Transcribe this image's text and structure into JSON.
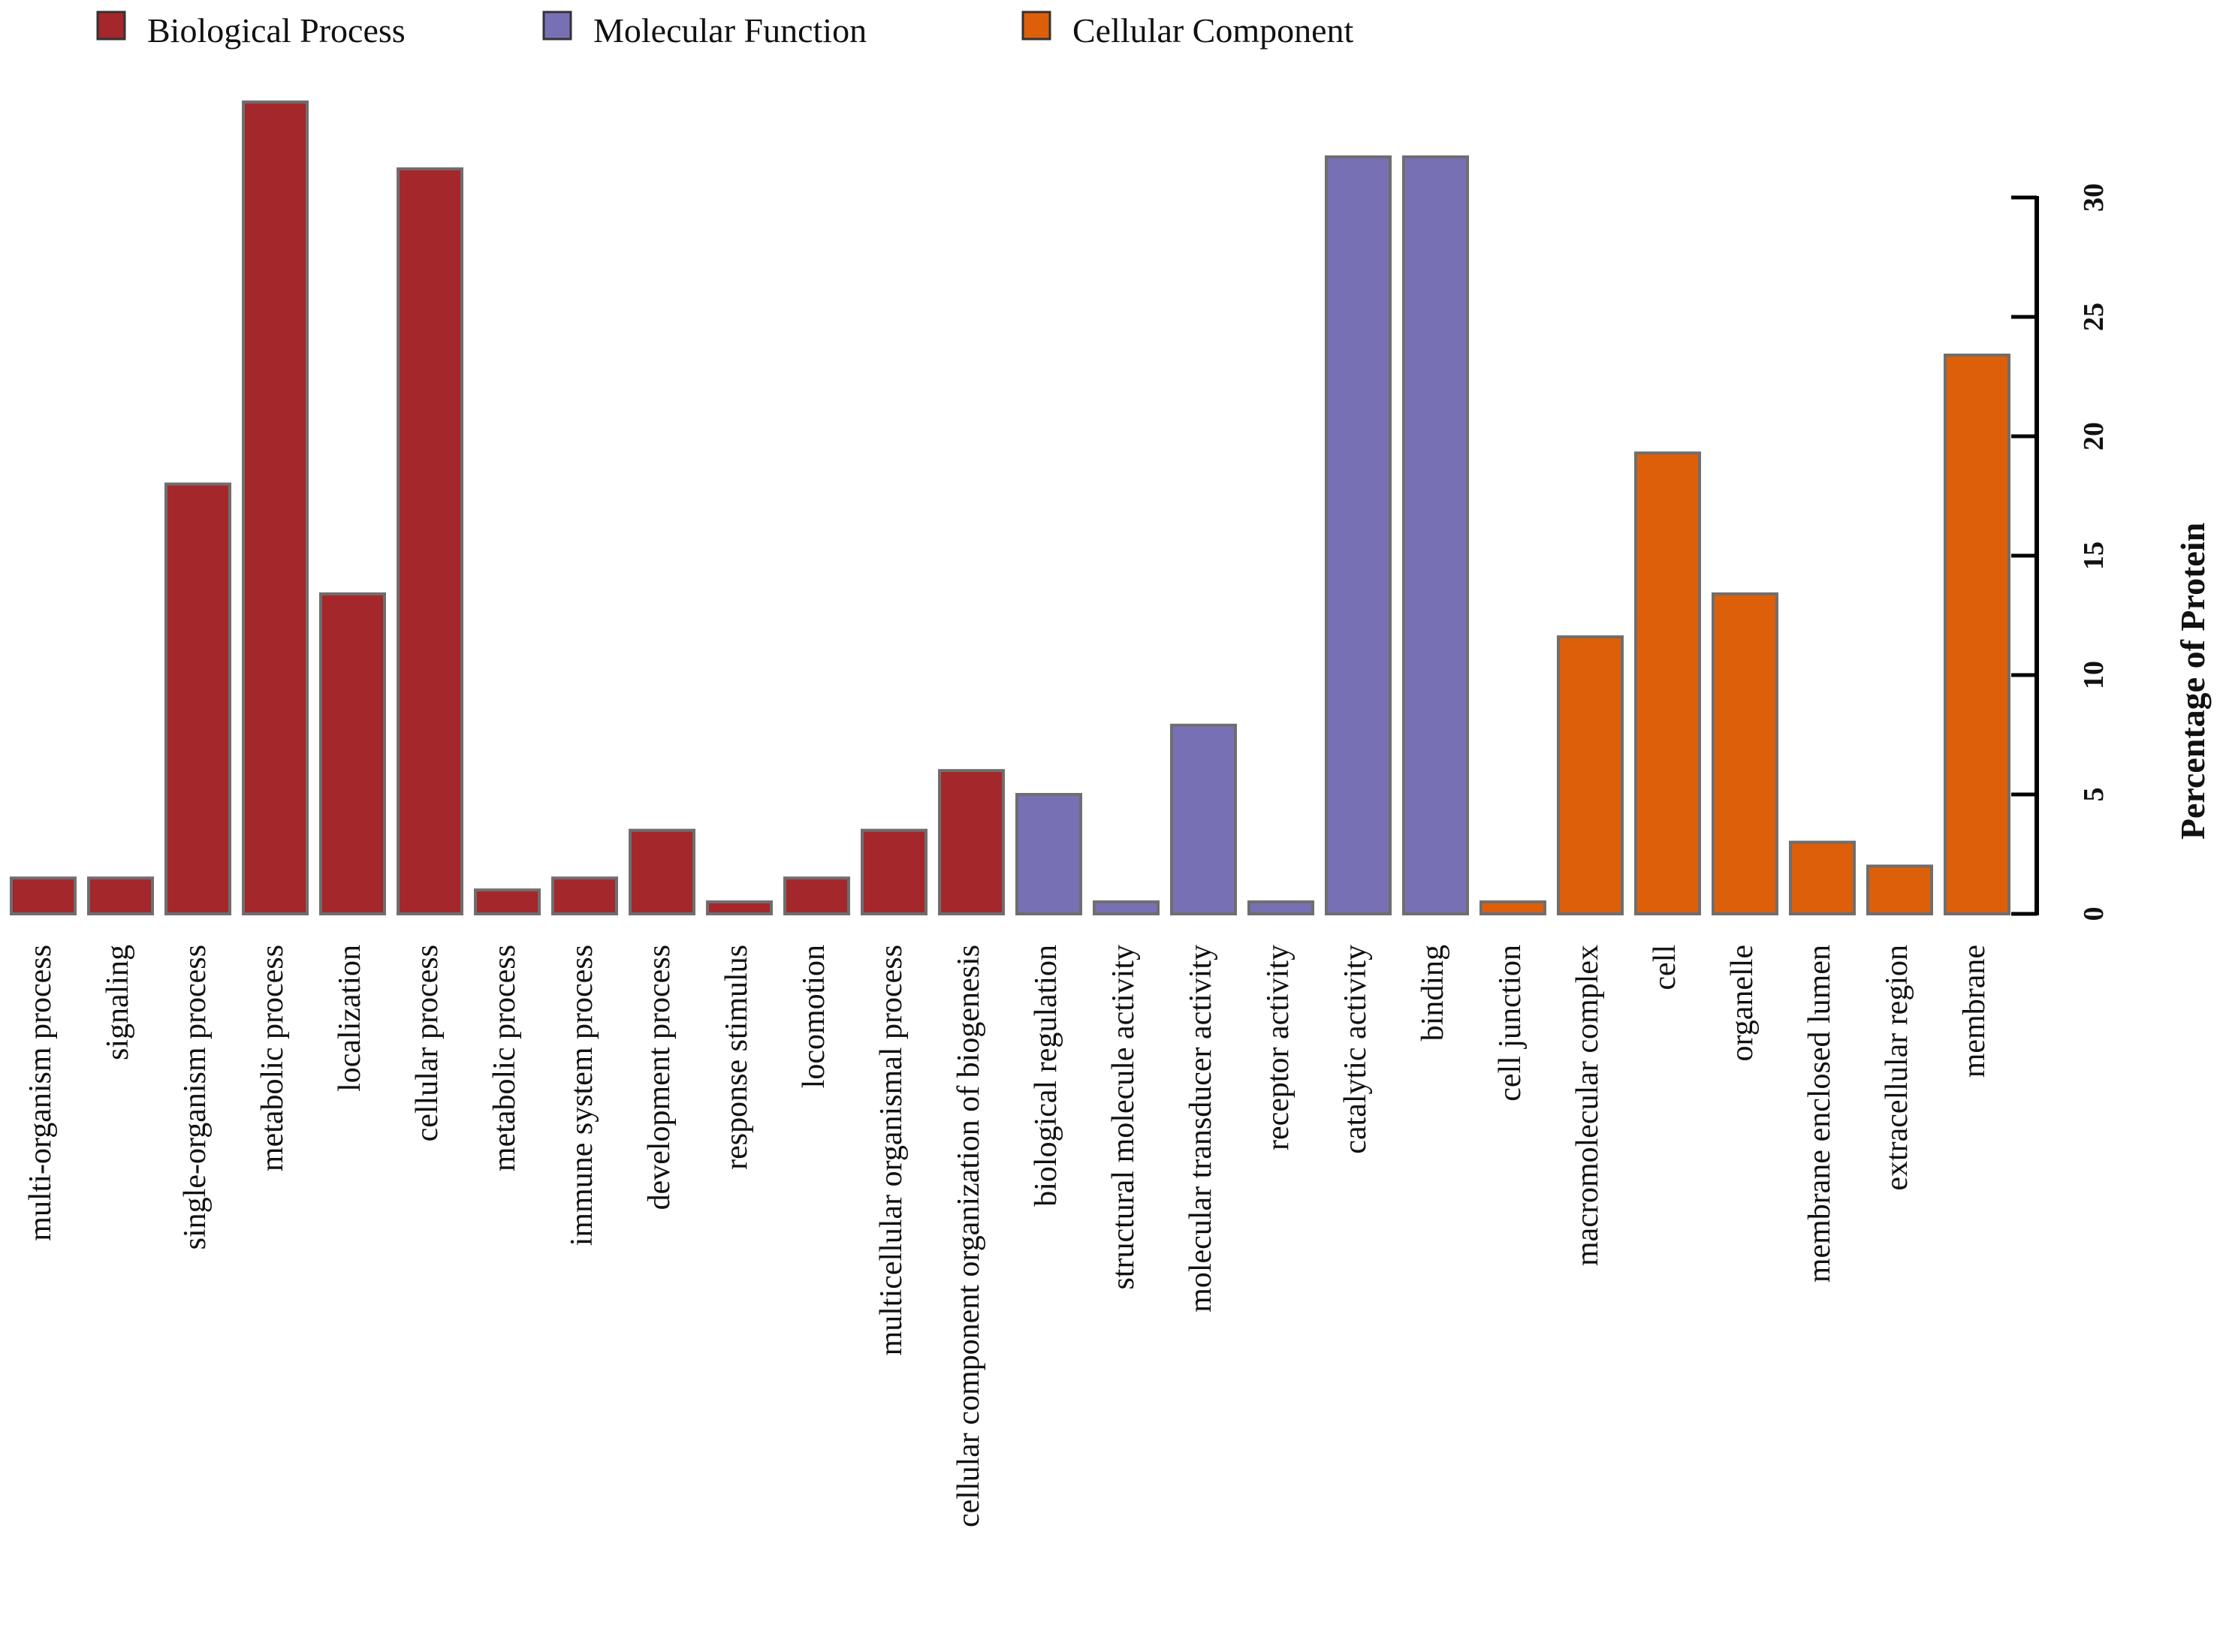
{
  "chart_data": {
    "type": "bar",
    "title": "",
    "xlabel": "",
    "ylabel": "Percentage of Protein",
    "ylim": [
      0,
      30
    ],
    "yticks": [
      0,
      5,
      10,
      15,
      20,
      25,
      30
    ],
    "y_axis_side": "right",
    "legend_position": "top-left",
    "grid": false,
    "groups": [
      {
        "name": "Biological Process",
        "color": "#a4272b"
      },
      {
        "name": "Molecular Function",
        "color": "#7870b5"
      },
      {
        "name": "Cellular Component",
        "color": "#dd5f0a"
      }
    ],
    "categories": [
      "multi-organism process",
      "signaling",
      "single-organism process",
      "metabolic process",
      "localization",
      "cellular process",
      "metabolic process",
      "immune system process",
      "development process",
      "response stimulus",
      "locomotion",
      "multicellular organismal process",
      "cellular component organization of biogenesis",
      "biological regulation",
      "structural molecule activity",
      "molecular transducer activity",
      "receptor activity",
      "catalytic activity",
      "binding",
      "cell junction",
      "macromolecular complex",
      "cell",
      "organelle",
      "membrane enclosed lumen",
      "extracellular region",
      "membrane"
    ],
    "category_group": [
      0,
      0,
      0,
      0,
      0,
      0,
      0,
      0,
      0,
      0,
      0,
      0,
      0,
      1,
      1,
      1,
      1,
      1,
      1,
      2,
      2,
      2,
      2,
      2,
      2,
      2
    ],
    "values": [
      1.5,
      1.5,
      18,
      34,
      13.4,
      31.2,
      1.0,
      1.5,
      3.5,
      0.5,
      1.5,
      3.5,
      6.0,
      5.0,
      0.5,
      7.9,
      0.5,
      31.7,
      31.7,
      0.5,
      11.6,
      19.3,
      13.4,
      3.0,
      2.0,
      23.4
    ]
  }
}
